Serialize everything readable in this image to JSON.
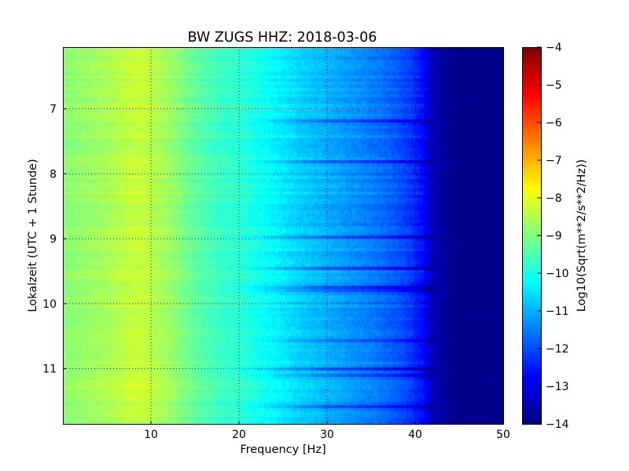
{
  "chart_data": {
    "type": "heatmap",
    "title": "BW ZUGS HHZ: 2018-03-06",
    "xlabel": "Frequency [Hz]",
    "ylabel": "Lokalzeit (UTC + 1 Stunde)",
    "colorbar_label": "Log10(Sqrt(m**2/s**2/Hz))",
    "xlim": [
      0,
      50
    ],
    "ylim": [
      6.05,
      11.85
    ],
    "y_inverted": true,
    "x_ticks": [
      10,
      20,
      30,
      40,
      50
    ],
    "x_tick_labels": [
      "10",
      "20",
      "30",
      "40",
      "50"
    ],
    "y_ticks": [
      7,
      8,
      9,
      10,
      11
    ],
    "y_tick_labels": [
      "7",
      "8",
      "9",
      "10",
      "11"
    ],
    "grid": true,
    "colormap": "jet",
    "color_range": [
      -14,
      -4
    ],
    "colorbar_ticks": [
      -4,
      -5,
      -6,
      -7,
      -8,
      -9,
      -10,
      -11,
      -12,
      -13,
      -14
    ],
    "colorbar_tick_labels": [
      "−4",
      "−5",
      "−6",
      "−7",
      "−8",
      "−9",
      "−10",
      "−11",
      "−12",
      "−13",
      "−14"
    ],
    "spectrum_profile": {
      "frequency_hz": [
        0,
        5,
        8,
        9,
        12,
        15,
        18,
        20,
        24,
        27,
        30,
        33,
        36,
        38,
        39.5,
        41,
        42,
        45,
        50
      ],
      "value": [
        -8.9,
        -8.6,
        -8.3,
        -8.3,
        -8.7,
        -9.3,
        -9.7,
        -9.8,
        -10.3,
        -10.7,
        -11.0,
        -11.3,
        -11.6,
        -11.9,
        -12.2,
        -12.7,
        -13.5,
        -13.9,
        -13.9
      ]
    }
  }
}
